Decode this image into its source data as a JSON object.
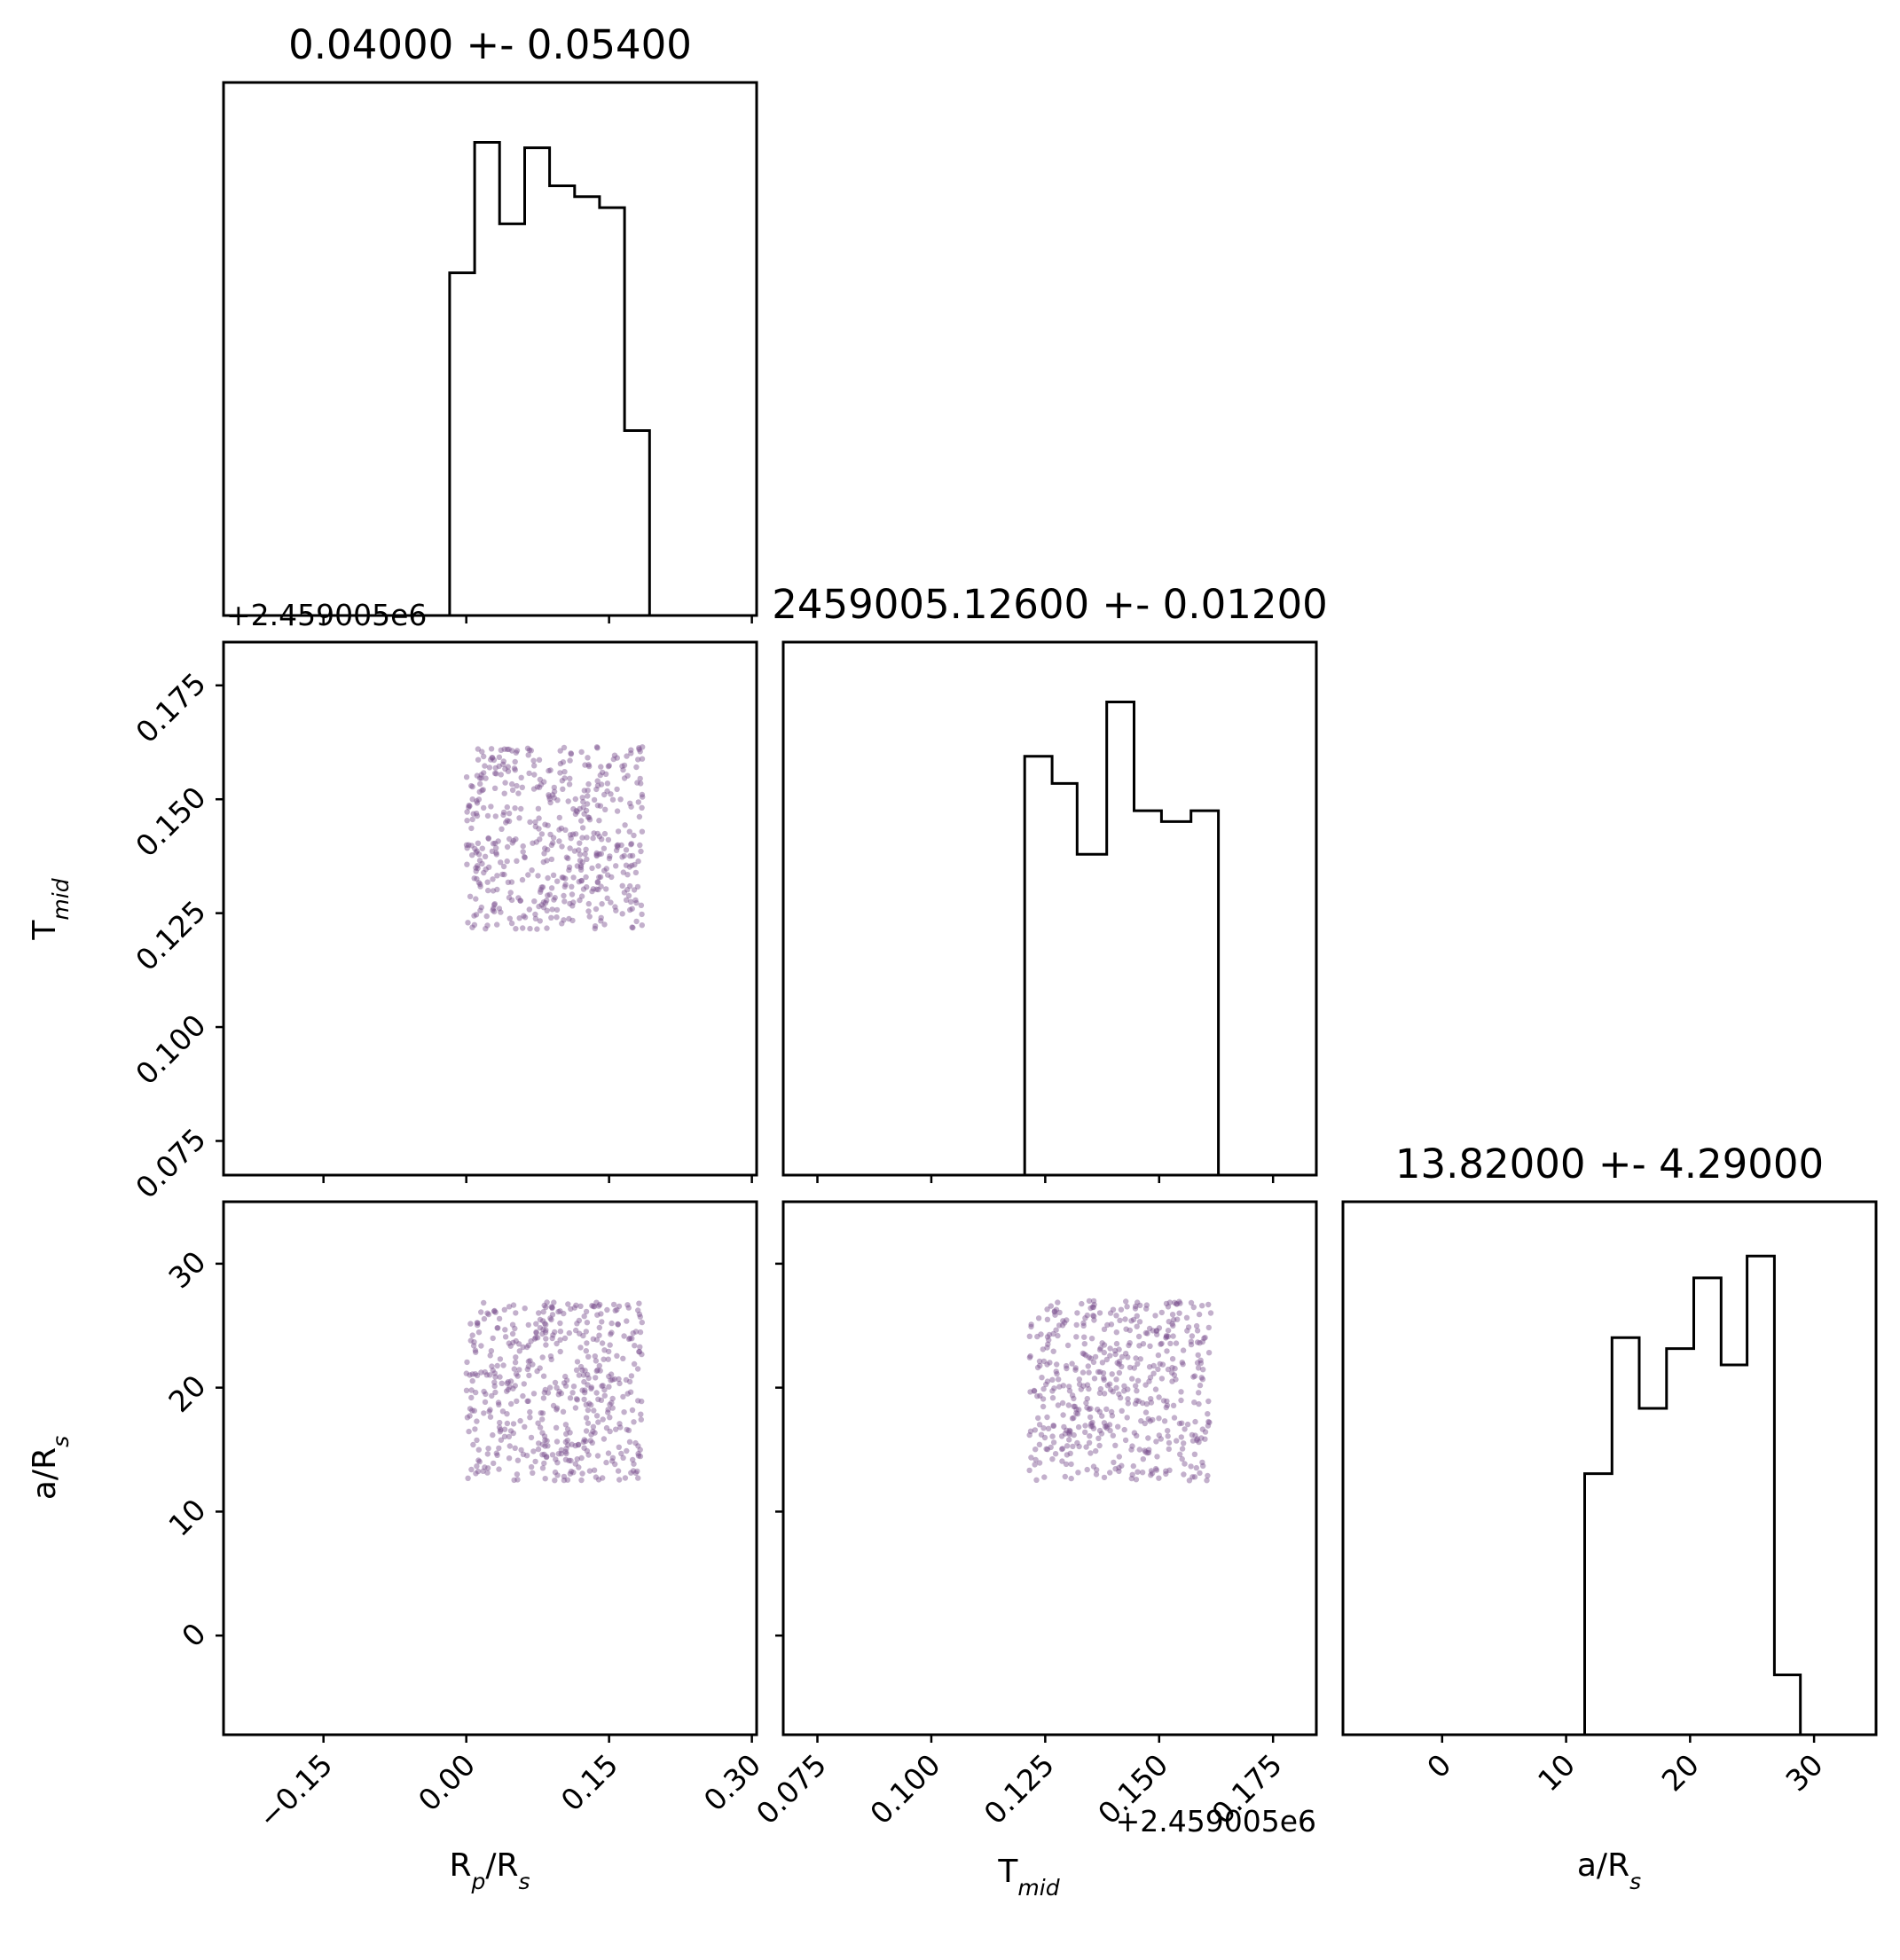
{
  "chart_data": {
    "type": "scatter",
    "variables": [
      {
        "key": "rp",
        "label_main": "R",
        "label_sub": "p",
        "label_mid": "/R",
        "label_sub2": "s",
        "axis_range": [
          -0.255,
          0.305
        ],
        "ticks": [
          -0.15,
          0.0,
          0.15,
          0.3
        ],
        "tick_labels": [
          "−0.15",
          "0.00",
          "0.15",
          "0.30"
        ],
        "title": "0.04000 +- 0.05400",
        "hist_edges": [
          -0.0175,
          0.0088,
          0.035,
          0.0613,
          0.0875,
          0.1138,
          0.14,
          0.1663,
          0.1925
        ],
        "hist_counts": [
          63,
          87,
          72,
          86,
          79,
          77,
          75,
          34
        ],
        "hist_max": 98,
        "sample_range": [
          0.0,
          0.185
        ]
      },
      {
        "key": "tmid",
        "label_main": "T",
        "label_sub": "mid",
        "label_mid": "",
        "label_sub2": "",
        "offset_label": "+2.459005e6",
        "axis_range": [
          0.0675,
          0.1845
        ],
        "ticks": [
          0.075,
          0.1,
          0.125,
          0.15,
          0.175
        ],
        "tick_labels": [
          "0.075",
          "0.100",
          "0.125",
          "0.150",
          "0.175"
        ],
        "title": "2459005.12600 +- 0.01200",
        "hist_edges": [
          0.1205,
          0.1265,
          0.132,
          0.1385,
          0.1445,
          0.1505,
          0.157,
          0.163
        ],
        "hist_counts": [
          77,
          72,
          59,
          87,
          67,
          65,
          67
        ],
        "hist_max": 98,
        "sample_range": [
          0.1215,
          0.1615
        ]
      },
      {
        "key": "ars",
        "label_main": "a/R",
        "label_sub": "s",
        "label_mid": "",
        "label_sub2": "",
        "axis_range": [
          -8,
          35
        ],
        "ticks": [
          0,
          10,
          20,
          30
        ],
        "tick_labels": [
          "0",
          "10",
          "20",
          "30"
        ],
        "title": "13.82000 +- 4.29000",
        "hist_edges": [
          11.5,
          13.7,
          15.9,
          18.1,
          20.3,
          22.5,
          24.6,
          26.8,
          28.9
        ],
        "hist_counts": [
          48,
          73,
          60,
          71,
          84,
          68,
          88,
          11
        ],
        "hist_max": 98,
        "sample_range": [
          12.5,
          27.0
        ]
      }
    ],
    "scatter_points_per_panel": 500,
    "point_color": "#7b4f8e",
    "line_color": "#000000",
    "grid": false,
    "legend": "none"
  }
}
